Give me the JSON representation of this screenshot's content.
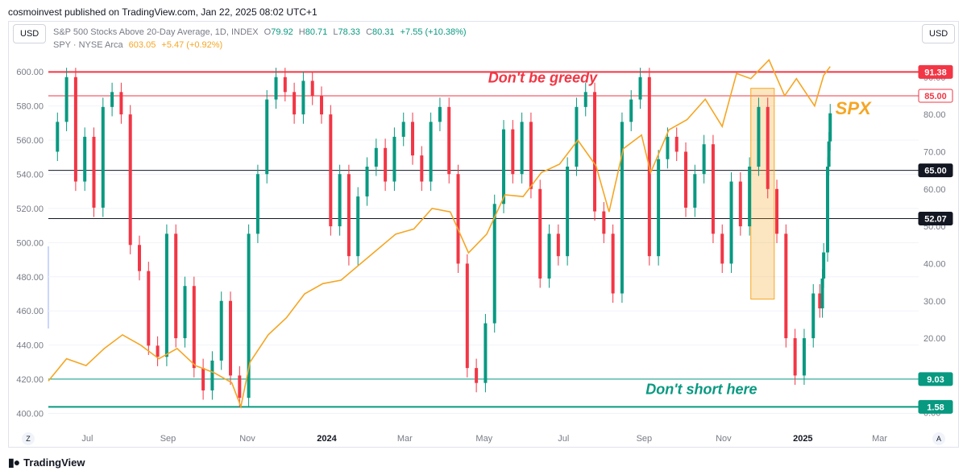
{
  "header": {
    "publisher": "cosmoinvest published on TradingView.com, Jan 22, 2025 08:02 UTC+1"
  },
  "currency_left": "USD",
  "currency_right": "USD",
  "legend": {
    "line1_prefix": "S&P 500 Stocks Above 20-Day Average, 1D, INDEX",
    "open_label": "O",
    "open": "79.92",
    "high_label": "H",
    "high": "80.71",
    "low_label": "L",
    "low": "78.33",
    "close_label": "C",
    "close": "80.31",
    "change": "+7.55 (+10.38%)",
    "line2_prefix": "SPY · NYSE Arca",
    "spy_price": "603.05",
    "spy_change": "+5.47 (+0.92%)"
  },
  "footer": {
    "brand": "TradingView",
    "logo_icon": "tradingview-logo-icon"
  },
  "buttons": {
    "zoom_left": "Z",
    "auto_right": "A"
  },
  "chart_data": {
    "type": "candlestick + line",
    "x_range": [
      "2023-06-01",
      "2025-03-31"
    ],
    "x_ticks": [
      {
        "label": "Jul",
        "date": "2023-07-01"
      },
      {
        "label": "Sep",
        "date": "2023-09-01"
      },
      {
        "label": "Nov",
        "date": "2023-11-01"
      },
      {
        "label": "2024",
        "date": "2024-01-01",
        "bold": true
      },
      {
        "label": "Mar",
        "date": "2024-03-01"
      },
      {
        "label": "May",
        "date": "2024-05-01"
      },
      {
        "label": "Jul",
        "date": "2024-07-01"
      },
      {
        "label": "Sep",
        "date": "2024-09-01"
      },
      {
        "label": "Nov",
        "date": "2024-11-01"
      },
      {
        "label": "2025",
        "date": "2025-01-01",
        "bold": true
      },
      {
        "label": "Mar",
        "date": "2025-03-01"
      }
    ],
    "left_axis": {
      "ylim": [
        396,
        610
      ],
      "ticks": [
        "400.00",
        "420.00",
        "440.00",
        "460.00",
        "480.00",
        "500.00",
        "520.00",
        "540.00",
        "560.00",
        "580.00",
        "600.00"
      ]
    },
    "right_axis": {
      "ylim": [
        -2,
        96
      ],
      "ticks": [
        "0.00",
        "10.00",
        "20.00",
        "30.00",
        "40.00",
        "50.00",
        "60.00",
        "70.00",
        "80.00",
        "90.00"
      ]
    },
    "hlines": [
      {
        "value": 91.38,
        "label": "91.38",
        "color": "#f23645",
        "width": 2,
        "badge_bg": "#f23645",
        "badge_fg": "#ffffff"
      },
      {
        "value": 85.0,
        "label": "85.00",
        "color": "#f23645",
        "width": 1,
        "badge_bg": "#ffffff",
        "badge_fg": "#f23645"
      },
      {
        "value": 65.0,
        "label": "65.00",
        "color": "#131722",
        "width": 1,
        "badge_bg": "#131722",
        "badge_fg": "#ffffff"
      },
      {
        "value": 52.07,
        "label": "52.07",
        "color": "#131722",
        "width": 1,
        "badge_bg": "#131722",
        "badge_fg": "#ffffff"
      },
      {
        "value": 9.03,
        "label": "9.03",
        "color": "#089981",
        "width": 1,
        "badge_bg": "#089981",
        "badge_fg": "#ffffff"
      },
      {
        "value": 1.58,
        "label": "1.58",
        "color": "#089981",
        "width": 2,
        "badge_bg": "#089981",
        "badge_fg": "#ffffff"
      }
    ],
    "annotations": [
      {
        "text": "Don't be greedy",
        "date": "2024-06-15",
        "value": 88.6,
        "color": "#f23645"
      },
      {
        "text": "Don't short here",
        "date": "2024-10-15",
        "value": 5.0,
        "color": "#089981"
      },
      {
        "text": "SPX",
        "date": "2025-01-26",
        "value": 80.0,
        "color": "#f5a623"
      }
    ],
    "highlight_box": {
      "from": "2024-11-22",
      "to": "2024-12-10",
      "y_top": 87.0,
      "y_bottom": 30.5,
      "fill": "#f5a623"
    },
    "colors": {
      "up": "#089981",
      "down": "#f23645",
      "spy": "#f5a623"
    },
    "breadth_series": {
      "name": "S&P 500 Stocks Above 20-Day Average",
      "points": [
        [
          "2023-06-01",
          70
        ],
        [
          "2023-06-08",
          78
        ],
        [
          "2023-06-15",
          90
        ],
        [
          "2023-06-22",
          62
        ],
        [
          "2023-06-29",
          74
        ],
        [
          "2023-07-06",
          55
        ],
        [
          "2023-07-13",
          82
        ],
        [
          "2023-07-20",
          86
        ],
        [
          "2023-07-27",
          80
        ],
        [
          "2023-08-03",
          45
        ],
        [
          "2023-08-10",
          38
        ],
        [
          "2023-08-17",
          18
        ],
        [
          "2023-08-24",
          15
        ],
        [
          "2023-08-31",
          48
        ],
        [
          "2023-09-07",
          20
        ],
        [
          "2023-09-14",
          34
        ],
        [
          "2023-09-21",
          12
        ],
        [
          "2023-09-28",
          6
        ],
        [
          "2023-10-05",
          14
        ],
        [
          "2023-10-12",
          30
        ],
        [
          "2023-10-19",
          10
        ],
        [
          "2023-10-26",
          4
        ],
        [
          "2023-11-02",
          48
        ],
        [
          "2023-11-09",
          64
        ],
        [
          "2023-11-16",
          84
        ],
        [
          "2023-11-23",
          90
        ],
        [
          "2023-11-30",
          86
        ],
        [
          "2023-12-07",
          80
        ],
        [
          "2023-12-14",
          89
        ],
        [
          "2023-12-21",
          85
        ],
        [
          "2023-12-28",
          80
        ],
        [
          "2024-01-04",
          50
        ],
        [
          "2024-01-11",
          64
        ],
        [
          "2024-01-18",
          42
        ],
        [
          "2024-01-25",
          58
        ],
        [
          "2024-02-01",
          66
        ],
        [
          "2024-02-08",
          71
        ],
        [
          "2024-02-15",
          62
        ],
        [
          "2024-02-22",
          74
        ],
        [
          "2024-02-29",
          78
        ],
        [
          "2024-03-07",
          69
        ],
        [
          "2024-03-14",
          62
        ],
        [
          "2024-03-21",
          78
        ],
        [
          "2024-03-28",
          82
        ],
        [
          "2024-04-04",
          64
        ],
        [
          "2024-04-11",
          40
        ],
        [
          "2024-04-18",
          12
        ],
        [
          "2024-04-25",
          8
        ],
        [
          "2024-05-02",
          24
        ],
        [
          "2024-05-09",
          56
        ],
        [
          "2024-05-16",
          76
        ],
        [
          "2024-05-23",
          64
        ],
        [
          "2024-05-30",
          78
        ],
        [
          "2024-06-06",
          60
        ],
        [
          "2024-06-13",
          36
        ],
        [
          "2024-06-20",
          48
        ],
        [
          "2024-06-27",
          42
        ],
        [
          "2024-07-04",
          66
        ],
        [
          "2024-07-11",
          82
        ],
        [
          "2024-07-18",
          86
        ],
        [
          "2024-07-25",
          54
        ],
        [
          "2024-08-01",
          48
        ],
        [
          "2024-08-08",
          32
        ],
        [
          "2024-08-15",
          78
        ],
        [
          "2024-08-22",
          84
        ],
        [
          "2024-08-29",
          90
        ],
        [
          "2024-09-05",
          42
        ],
        [
          "2024-09-12",
          68
        ],
        [
          "2024-09-19",
          74
        ],
        [
          "2024-09-26",
          70
        ],
        [
          "2024-10-03",
          55
        ],
        [
          "2024-10-10",
          64
        ],
        [
          "2024-10-17",
          72
        ],
        [
          "2024-10-24",
          48
        ],
        [
          "2024-10-31",
          40
        ],
        [
          "2024-11-07",
          62
        ],
        [
          "2024-11-14",
          50
        ],
        [
          "2024-11-21",
          66
        ],
        [
          "2024-11-28",
          82
        ],
        [
          "2024-12-05",
          60
        ],
        [
          "2024-12-12",
          48
        ],
        [
          "2024-12-19",
          20
        ],
        [
          "2024-12-26",
          10
        ],
        [
          "2025-01-02",
          20
        ],
        [
          "2025-01-09",
          32
        ],
        [
          "2025-01-14",
          28
        ],
        [
          "2025-01-16",
          36
        ],
        [
          "2025-01-17",
          43
        ],
        [
          "2025-01-20",
          66
        ],
        [
          "2025-01-21",
          72.76
        ],
        [
          "2025-01-22",
          80.31
        ]
      ]
    },
    "spy_series": {
      "points": [
        [
          "2023-06-01",
          419
        ],
        [
          "2023-06-15",
          432
        ],
        [
          "2023-06-30",
          428
        ],
        [
          "2023-07-14",
          438
        ],
        [
          "2023-07-28",
          446
        ],
        [
          "2023-08-11",
          440
        ],
        [
          "2023-08-25",
          432
        ],
        [
          "2023-09-08",
          438
        ],
        [
          "2023-09-22",
          428
        ],
        [
          "2023-10-06",
          424
        ],
        [
          "2023-10-20",
          418
        ],
        [
          "2023-10-27",
          404
        ],
        [
          "2023-11-03",
          430
        ],
        [
          "2023-11-17",
          446
        ],
        [
          "2023-12-01",
          456
        ],
        [
          "2023-12-15",
          470
        ],
        [
          "2023-12-29",
          476
        ],
        [
          "2024-01-12",
          478
        ],
        [
          "2024-01-26",
          487
        ],
        [
          "2024-02-09",
          496
        ],
        [
          "2024-02-23",
          505
        ],
        [
          "2024-03-08",
          508
        ],
        [
          "2024-03-22",
          520
        ],
        [
          "2024-04-05",
          518
        ],
        [
          "2024-04-19",
          494
        ],
        [
          "2024-05-03",
          505
        ],
        [
          "2024-05-17",
          528
        ],
        [
          "2024-05-31",
          527
        ],
        [
          "2024-06-14",
          541
        ],
        [
          "2024-06-28",
          546
        ],
        [
          "2024-07-12",
          560
        ],
        [
          "2024-07-26",
          545
        ],
        [
          "2024-08-05",
          518
        ],
        [
          "2024-08-16",
          555
        ],
        [
          "2024-08-30",
          563
        ],
        [
          "2024-09-06",
          541
        ],
        [
          "2024-09-20",
          566
        ],
        [
          "2024-10-04",
          572
        ],
        [
          "2024-10-18",
          584
        ],
        [
          "2024-10-31",
          568
        ],
        [
          "2024-11-11",
          599
        ],
        [
          "2024-11-22",
          596
        ],
        [
          "2024-12-06",
          607
        ],
        [
          "2024-12-18",
          586
        ],
        [
          "2024-12-27",
          596
        ],
        [
          "2025-01-10",
          580
        ],
        [
          "2025-01-17",
          598
        ],
        [
          "2025-01-22",
          603.05
        ]
      ]
    }
  }
}
